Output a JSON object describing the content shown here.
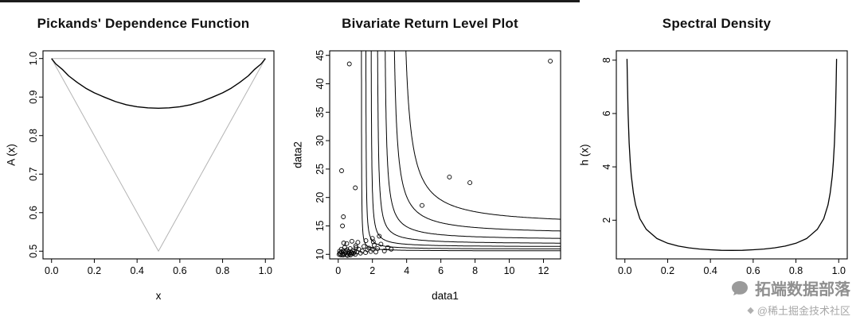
{
  "page": {
    "watermark_brand": "拓端数据部落",
    "watermark_community": "@稀土掘金技术社区"
  },
  "chart_data": [
    {
      "type": "line",
      "title": "Pickands' Dependence Function",
      "xlabel": "x",
      "ylabel": "A (x)",
      "xlim": [
        -0.04,
        1.04
      ],
      "ylim": [
        0.48,
        1.02
      ],
      "xticks": [
        0.0,
        0.2,
        0.4,
        0.6,
        0.8,
        1.0
      ],
      "xtick_labels": [
        "0.0",
        "0.2",
        "0.4",
        "0.6",
        "0.8",
        "1.0"
      ],
      "yticks": [
        0.5,
        0.6,
        0.7,
        0.8,
        0.9,
        1.0
      ],
      "ytick_labels": [
        "0.5",
        "0.6",
        "0.7",
        "0.8",
        "0.9",
        "1.0"
      ],
      "grid": false,
      "series": [
        {
          "name": "upper-bound-line",
          "color": "#b4b4b4",
          "width": 1,
          "points": [
            [
              0,
              1
            ],
            [
              1,
              1
            ]
          ]
        },
        {
          "name": "lower-bound-line",
          "color": "#b4b4b4",
          "width": 1,
          "points": [
            [
              0,
              1
            ],
            [
              0.5,
              0.5
            ],
            [
              1,
              1
            ]
          ]
        },
        {
          "name": "pickands-curve",
          "color": "#000000",
          "width": 1.4,
          "points": [
            [
              0,
              1
            ],
            [
              0.02,
              0.986
            ],
            [
              0.05,
              0.972
            ],
            [
              0.08,
              0.955
            ],
            [
              0.12,
              0.938
            ],
            [
              0.16,
              0.923
            ],
            [
              0.2,
              0.911
            ],
            [
              0.25,
              0.899
            ],
            [
              0.3,
              0.888
            ],
            [
              0.35,
              0.88
            ],
            [
              0.4,
              0.875
            ],
            [
              0.45,
              0.872
            ],
            [
              0.5,
              0.871
            ],
            [
              0.55,
              0.872
            ],
            [
              0.6,
              0.875
            ],
            [
              0.65,
              0.88
            ],
            [
              0.7,
              0.888
            ],
            [
              0.75,
              0.899
            ],
            [
              0.8,
              0.911
            ],
            [
              0.84,
              0.923
            ],
            [
              0.88,
              0.938
            ],
            [
              0.92,
              0.955
            ],
            [
              0.95,
              0.972
            ],
            [
              0.98,
              0.986
            ],
            [
              1,
              1
            ]
          ]
        }
      ]
    },
    {
      "type": "scatter",
      "title": "Bivariate Return Level Plot",
      "xlabel": "data1",
      "ylabel": "data2",
      "xlim": [
        -0.5,
        13.0
      ],
      "ylim": [
        9.2,
        45.8
      ],
      "xticks": [
        0,
        2,
        4,
        6,
        8,
        10,
        12
      ],
      "xtick_labels": [
        "0",
        "2",
        "4",
        "6",
        "8",
        "10",
        "12"
      ],
      "yticks": [
        10,
        15,
        20,
        25,
        30,
        35,
        40,
        45
      ],
      "ytick_labels": [
        "10",
        "15",
        "20",
        "25",
        "30",
        "35",
        "40",
        "45"
      ],
      "grid": false,
      "points": [
        [
          0.05,
          10.0
        ],
        [
          0.08,
          10.55
        ],
        [
          0.1,
          10.2
        ],
        [
          0.15,
          9.9
        ],
        [
          0.18,
          10.9
        ],
        [
          0.2,
          10.4
        ],
        [
          0.25,
          10.1
        ],
        [
          0.28,
          9.85
        ],
        [
          0.3,
          10.65
        ],
        [
          0.32,
          12.0
        ],
        [
          0.35,
          10.0
        ],
        [
          0.38,
          11.2
        ],
        [
          0.4,
          10.3
        ],
        [
          0.45,
          10.55
        ],
        [
          0.48,
          9.9
        ],
        [
          0.5,
          11.9
        ],
        [
          0.52,
          10.8
        ],
        [
          0.55,
          9.8
        ],
        [
          0.58,
          10.2
        ],
        [
          0.6,
          10.5
        ],
        [
          0.65,
          10.05
        ],
        [
          0.7,
          11.0
        ],
        [
          0.72,
          9.9
        ],
        [
          0.75,
          10.3
        ],
        [
          0.8,
          12.3
        ],
        [
          0.82,
          10.1
        ],
        [
          0.85,
          10.7
        ],
        [
          0.9,
          10.2
        ],
        [
          0.95,
          10.5
        ],
        [
          1.0,
          10.0
        ],
        [
          1.02,
          11.5
        ],
        [
          1.05,
          11.2
        ],
        [
          1.1,
          10.4
        ],
        [
          1.15,
          12.1
        ],
        [
          1.2,
          10.9
        ],
        [
          1.3,
          10.2
        ],
        [
          1.4,
          10.6
        ],
        [
          1.5,
          11.4
        ],
        [
          1.6,
          10.3
        ],
        [
          1.62,
          12.4
        ],
        [
          1.7,
          10.8
        ],
        [
          1.8,
          11.1
        ],
        [
          1.9,
          10.5
        ],
        [
          2.0,
          10.9
        ],
        [
          2.0,
          12.8
        ],
        [
          2.05,
          12.2
        ],
        [
          2.1,
          11.6
        ],
        [
          2.2,
          10.4
        ],
        [
          2.3,
          11.0
        ],
        [
          2.4,
          13.2
        ],
        [
          2.5,
          11.8
        ],
        [
          2.7,
          10.6
        ],
        [
          2.9,
          11.2
        ],
        [
          3.1,
          10.9
        ],
        [
          0.2,
          24.7
        ],
        [
          0.25,
          15.0
        ],
        [
          0.3,
          16.6
        ],
        [
          0.65,
          43.5
        ],
        [
          1.0,
          21.7
        ],
        [
          4.9,
          18.6
        ],
        [
          6.5,
          23.6
        ],
        [
          7.7,
          22.6
        ],
        [
          12.4,
          44.0
        ]
      ],
      "contours": [
        {
          "x_asym": 1.35,
          "y_asym": 10.6,
          "k": 0.3
        },
        {
          "x_asym": 1.6,
          "y_asym": 10.9,
          "k": 0.6
        },
        {
          "x_asym": 1.9,
          "y_asym": 11.3,
          "k": 1.0
        },
        {
          "x_asym": 2.25,
          "y_asym": 11.8,
          "k": 1.8
        },
        {
          "x_asym": 2.65,
          "y_asym": 12.5,
          "k": 3.2
        },
        {
          "x_asym": 3.1,
          "y_asym": 13.5,
          "k": 6.0
        },
        {
          "x_asym": 3.6,
          "y_asym": 15.0,
          "k": 11.0
        }
      ]
    },
    {
      "type": "line",
      "title": "Spectral Density",
      "xlabel": "",
      "ylabel": "h (x)",
      "xlim": [
        -0.04,
        1.04
      ],
      "ylim": [
        0.55,
        8.35
      ],
      "xticks": [
        0.0,
        0.2,
        0.4,
        0.6,
        0.8,
        1.0
      ],
      "xtick_labels": [
        "0.0",
        "0.2",
        "0.4",
        "0.6",
        "0.8",
        "1.0"
      ],
      "yticks": [
        2,
        4,
        6,
        8
      ],
      "ytick_labels": [
        "2",
        "4",
        "6",
        "8"
      ],
      "grid": false,
      "series": [
        {
          "name": "spectral-density-curve",
          "color": "#000000",
          "width": 1.3,
          "points": [
            [
              0.01,
              8.05
            ],
            [
              0.012,
              7.07
            ],
            [
              0.015,
              5.98
            ],
            [
              0.02,
              4.89
            ],
            [
              0.025,
              4.16
            ],
            [
              0.03,
              3.66
            ],
            [
              0.04,
              3.01
            ],
            [
              0.05,
              2.57
            ],
            [
              0.07,
              2.06
            ],
            [
              0.1,
              1.657
            ],
            [
              0.15,
              1.312
            ],
            [
              0.2,
              1.137
            ],
            [
              0.25,
              1.028
            ],
            [
              0.3,
              0.963
            ],
            [
              0.35,
              0.919
            ],
            [
              0.4,
              0.891
            ],
            [
              0.45,
              0.873
            ],
            [
              0.5,
              0.87
            ],
            [
              0.55,
              0.873
            ],
            [
              0.6,
              0.891
            ],
            [
              0.65,
              0.919
            ],
            [
              0.7,
              0.963
            ],
            [
              0.75,
              1.028
            ],
            [
              0.8,
              1.137
            ],
            [
              0.85,
              1.312
            ],
            [
              0.9,
              1.657
            ],
            [
              0.93,
              2.06
            ],
            [
              0.95,
              2.57
            ],
            [
              0.96,
              3.01
            ],
            [
              0.97,
              3.66
            ],
            [
              0.975,
              4.16
            ],
            [
              0.98,
              4.89
            ],
            [
              0.985,
              5.98
            ],
            [
              0.988,
              7.07
            ],
            [
              0.99,
              8.05
            ]
          ]
        }
      ]
    }
  ]
}
